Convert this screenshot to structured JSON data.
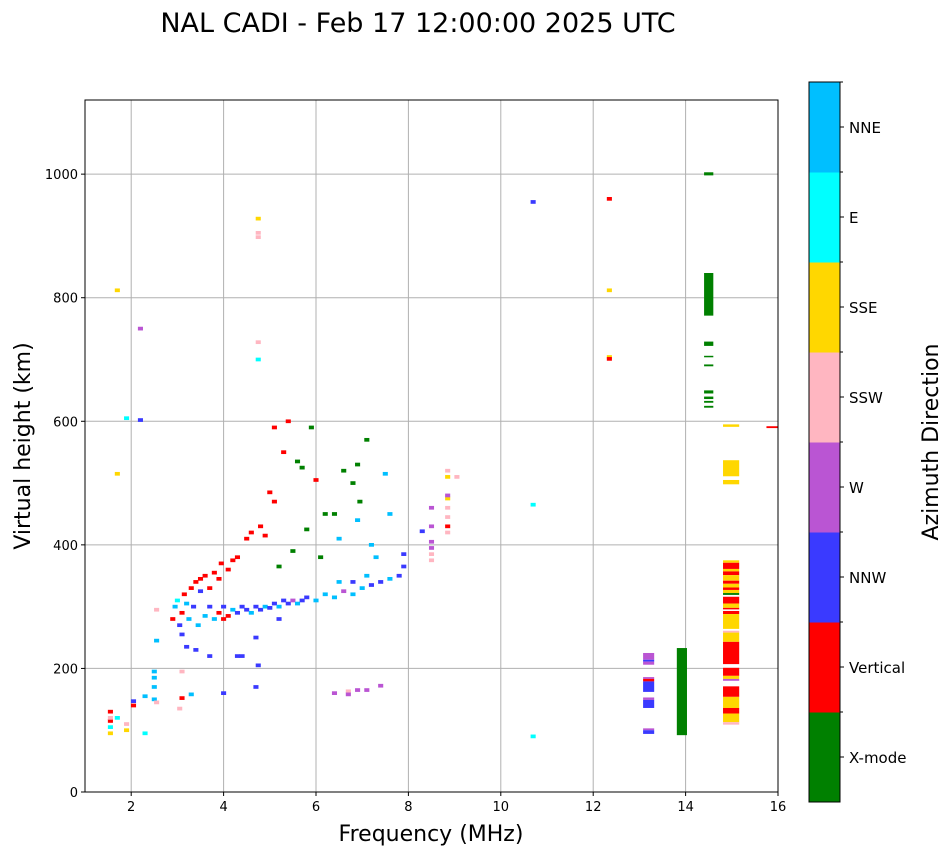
{
  "chart_data": {
    "type": "scatter",
    "title": "NAL CADI - Feb 17 12:00:00 2025 UTC",
    "xlabel": "Frequency (MHz)",
    "ylabel": "Virtual height (km)",
    "xlim": [
      1,
      16
    ],
    "ylim": [
      0,
      1120
    ],
    "xticks": [
      2,
      4,
      6,
      8,
      10,
      12,
      14,
      16
    ],
    "yticks": [
      0,
      200,
      400,
      600,
      800,
      1000
    ],
    "grid": true,
    "colorbar": {
      "label": "Azimuth Direction",
      "categories": [
        "X-mode",
        "Vertical",
        "NNW",
        "W",
        "SSW",
        "SSE",
        "E",
        "NNE"
      ],
      "colors": [
        "#008000",
        "#ff0000",
        "#3a3aff",
        "#ba55d3",
        "#ffb6c1",
        "#ffd700",
        "#00ffff",
        "#00bfff"
      ]
    },
    "points_format": "[frequency_MHz, virtual_height_km, direction_index]",
    "points": [
      [
        1.55,
        95,
        5
      ],
      [
        1.55,
        105,
        6
      ],
      [
        1.55,
        115,
        1
      ],
      [
        1.55,
        120,
        4
      ],
      [
        1.55,
        130,
        1
      ],
      [
        1.7,
        120,
        6
      ],
      [
        1.9,
        110,
        4
      ],
      [
        1.9,
        100,
        5
      ],
      [
        2.05,
        140,
        1
      ],
      [
        2.05,
        147,
        2
      ],
      [
        2.3,
        95,
        6
      ],
      [
        2.3,
        155,
        7
      ],
      [
        2.5,
        150,
        7
      ],
      [
        2.5,
        170,
        7
      ],
      [
        2.5,
        185,
        7
      ],
      [
        2.5,
        195,
        7
      ],
      [
        2.55,
        145,
        4
      ],
      [
        2.55,
        245,
        7
      ],
      [
        2.55,
        295,
        4
      ],
      [
        3.1,
        152,
        1
      ],
      [
        3.05,
        135,
        4
      ],
      [
        3.3,
        158,
        7
      ],
      [
        3.1,
        195,
        4
      ],
      [
        2.9,
        280,
        1
      ],
      [
        2.95,
        300,
        7
      ],
      [
        3.0,
        310,
        6
      ],
      [
        3.05,
        270,
        2
      ],
      [
        3.1,
        255,
        2
      ],
      [
        3.1,
        290,
        1
      ],
      [
        3.15,
        320,
        1
      ],
      [
        3.2,
        305,
        7
      ],
      [
        3.25,
        280,
        7
      ],
      [
        3.3,
        330,
        1
      ],
      [
        3.35,
        300,
        2
      ],
      [
        3.4,
        340,
        1
      ],
      [
        3.45,
        270,
        7
      ],
      [
        3.5,
        325,
        2
      ],
      [
        3.5,
        345,
        1
      ],
      [
        3.6,
        285,
        7
      ],
      [
        3.6,
        350,
        1
      ],
      [
        3.7,
        300,
        2
      ],
      [
        3.7,
        330,
        1
      ],
      [
        3.8,
        280,
        7
      ],
      [
        3.8,
        355,
        1
      ],
      [
        3.9,
        290,
        1
      ],
      [
        3.9,
        345,
        1
      ],
      [
        3.95,
        370,
        1
      ],
      [
        4.0,
        280,
        1
      ],
      [
        4.0,
        300,
        2
      ],
      [
        4.1,
        285,
        1
      ],
      [
        4.1,
        360,
        1
      ],
      [
        4.2,
        375,
        1
      ],
      [
        4.2,
        295,
        7
      ],
      [
        4.3,
        380,
        1
      ],
      [
        4.3,
        290,
        2
      ],
      [
        4.4,
        300,
        2
      ],
      [
        4.5,
        295,
        2
      ],
      [
        4.6,
        290,
        7
      ],
      [
        4.7,
        300,
        2
      ],
      [
        4.8,
        295,
        2
      ],
      [
        4.9,
        300,
        7
      ],
      [
        5.0,
        298,
        2
      ],
      [
        5.1,
        305,
        2
      ],
      [
        5.2,
        300,
        7
      ],
      [
        5.3,
        310,
        2
      ],
      [
        5.4,
        305,
        2
      ],
      [
        5.5,
        310,
        3
      ],
      [
        5.6,
        305,
        7
      ],
      [
        5.7,
        310,
        2
      ],
      [
        5.8,
        315,
        2
      ],
      [
        6.0,
        310,
        7
      ],
      [
        6.2,
        320,
        7
      ],
      [
        6.4,
        315,
        7
      ],
      [
        6.6,
        325,
        3
      ],
      [
        6.8,
        320,
        7
      ],
      [
        7.0,
        330,
        7
      ],
      [
        7.2,
        335,
        2
      ],
      [
        7.4,
        340,
        2
      ],
      [
        7.6,
        345,
        7
      ],
      [
        7.8,
        350,
        2
      ],
      [
        7.9,
        365,
        2
      ],
      [
        7.9,
        385,
        2
      ],
      [
        6.5,
        340,
        7
      ],
      [
        6.8,
        340,
        2
      ],
      [
        7.1,
        350,
        7
      ],
      [
        5.2,
        280,
        2
      ],
      [
        4.3,
        220,
        2
      ],
      [
        4.4,
        220,
        2
      ],
      [
        3.7,
        220,
        2
      ],
      [
        4.75,
        205,
        2
      ],
      [
        3.2,
        235,
        2
      ],
      [
        3.4,
        230,
        2
      ],
      [
        4.7,
        250,
        2
      ],
      [
        4.0,
        160,
        2
      ],
      [
        4.7,
        170,
        2
      ],
      [
        4.5,
        410,
        1
      ],
      [
        4.6,
        420,
        1
      ],
      [
        4.8,
        430,
        1
      ],
      [
        5.0,
        485,
        1
      ],
      [
        5.1,
        470,
        1
      ],
      [
        4.9,
        415,
        1
      ],
      [
        5.1,
        590,
        1
      ],
      [
        5.4,
        600,
        1
      ],
      [
        5.3,
        550,
        1
      ],
      [
        6.0,
        505,
        1
      ],
      [
        5.8,
        425,
        0
      ],
      [
        5.5,
        390,
        0
      ],
      [
        5.2,
        365,
        0
      ],
      [
        5.6,
        535,
        0
      ],
      [
        5.7,
        525,
        0
      ],
      [
        6.2,
        450,
        0
      ],
      [
        6.6,
        520,
        0
      ],
      [
        6.8,
        500,
        0
      ],
      [
        6.9,
        530,
        0
      ],
      [
        6.95,
        470,
        0
      ],
      [
        7.1,
        570,
        0
      ],
      [
        7.2,
        400,
        7
      ],
      [
        7.5,
        515,
        7
      ],
      [
        7.6,
        450,
        7
      ],
      [
        6.4,
        450,
        0
      ],
      [
        5.9,
        590,
        0
      ],
      [
        6.1,
        380,
        0
      ],
      [
        6.5,
        410,
        7
      ],
      [
        6.9,
        440,
        7
      ],
      [
        7.3,
        380,
        7
      ],
      [
        8.5,
        395,
        3
      ],
      [
        8.5,
        405,
        3
      ],
      [
        8.5,
        460,
        3
      ],
      [
        8.5,
        430,
        3
      ],
      [
        8.5,
        385,
        4
      ],
      [
        8.5,
        375,
        4
      ],
      [
        8.85,
        420,
        4
      ],
      [
        8.85,
        430,
        1
      ],
      [
        8.85,
        445,
        4
      ],
      [
        8.85,
        460,
        4
      ],
      [
        8.85,
        475,
        5
      ],
      [
        8.85,
        480,
        3
      ],
      [
        8.85,
        510,
        5
      ],
      [
        8.85,
        520,
        4
      ],
      [
        9.05,
        510,
        4
      ],
      [
        8.3,
        422,
        2
      ],
      [
        1.7,
        812,
        5
      ],
      [
        1.7,
        515,
        5
      ],
      [
        1.9,
        605,
        6
      ],
      [
        2.2,
        602,
        2
      ],
      [
        2.2,
        750,
        3
      ],
      [
        4.75,
        928,
        5
      ],
      [
        4.75,
        905,
        4
      ],
      [
        4.75,
        898,
        4
      ],
      [
        4.75,
        728,
        4
      ],
      [
        4.75,
        700,
        6
      ],
      [
        10.7,
        955,
        2
      ],
      [
        10.7,
        465,
        6
      ],
      [
        10.7,
        90,
        6
      ],
      [
        12.35,
        960,
        1
      ],
      [
        12.35,
        812,
        5
      ],
      [
        12.35,
        704,
        5
      ],
      [
        12.35,
        701,
        1
      ],
      [
        6.4,
        160,
        3
      ],
      [
        6.7,
        163,
        4
      ],
      [
        6.7,
        158,
        3
      ],
      [
        6.9,
        165,
        3
      ],
      [
        7.1,
        165,
        3
      ],
      [
        7.4,
        172,
        3
      ]
    ],
    "bars_format": "[freq_start_MHz, freq_end_MHz, height_low_km, height_high_km, direction_index]",
    "bars": [
      [
        14.4,
        14.6,
        998,
        1003,
        0
      ],
      [
        14.4,
        14.6,
        771,
        840,
        0
      ],
      [
        14.4,
        14.6,
        722,
        729,
        0
      ],
      [
        14.4,
        14.6,
        704,
        706,
        0
      ],
      [
        14.4,
        14.6,
        689,
        692,
        0
      ],
      [
        14.4,
        14.6,
        645,
        650,
        0
      ],
      [
        14.4,
        14.6,
        636,
        640,
        0
      ],
      [
        14.4,
        14.6,
        630,
        633,
        0
      ],
      [
        14.4,
        14.6,
        622,
        625,
        0
      ],
      [
        15.75,
        16.0,
        589,
        592,
        1
      ],
      [
        13.81,
        14.03,
        92,
        233,
        0
      ],
      [
        13.08,
        13.32,
        214,
        225,
        3
      ],
      [
        13.08,
        13.32,
        211,
        214,
        2
      ],
      [
        13.08,
        13.32,
        206,
        211,
        3
      ],
      [
        13.08,
        13.32,
        183,
        186,
        3
      ],
      [
        13.08,
        13.32,
        179,
        183,
        1
      ],
      [
        13.08,
        13.32,
        162,
        179,
        2
      ],
      [
        13.08,
        13.32,
        149,
        153,
        3
      ],
      [
        13.08,
        13.32,
        136,
        149,
        2
      ],
      [
        13.08,
        13.32,
        100,
        103,
        3
      ],
      [
        13.08,
        13.32,
        94,
        100,
        2
      ],
      [
        14.81,
        15.16,
        591,
        595,
        5
      ],
      [
        14.81,
        15.16,
        511,
        537,
        5
      ],
      [
        14.81,
        15.16,
        498,
        505,
        5
      ],
      [
        14.81,
        15.16,
        371,
        375,
        5
      ],
      [
        14.81,
        15.16,
        361,
        371,
        1
      ],
      [
        14.81,
        15.16,
        357,
        361,
        5
      ],
      [
        14.81,
        15.16,
        351,
        357,
        1
      ],
      [
        14.81,
        15.16,
        342,
        351,
        5
      ],
      [
        14.81,
        15.16,
        337,
        342,
        1
      ],
      [
        14.81,
        15.16,
        331,
        337,
        5
      ],
      [
        14.81,
        15.16,
        327,
        331,
        1
      ],
      [
        14.81,
        15.16,
        322,
        327,
        5
      ],
      [
        14.81,
        15.16,
        319,
        322,
        0
      ],
      [
        14.81,
        15.16,
        305,
        316,
        1
      ],
      [
        14.81,
        15.16,
        298,
        305,
        5
      ],
      [
        14.81,
        15.16,
        296,
        298,
        1
      ],
      [
        14.81,
        15.16,
        288,
        293,
        1
      ],
      [
        14.81,
        15.16,
        264,
        288,
        5
      ],
      [
        14.81,
        15.16,
        258,
        261,
        4
      ],
      [
        14.81,
        15.16,
        243,
        258,
        5
      ],
      [
        14.81,
        15.16,
        207,
        243,
        1
      ],
      [
        14.81,
        15.16,
        188,
        201,
        1
      ],
      [
        14.81,
        15.16,
        183,
        188,
        5
      ],
      [
        14.81,
        15.16,
        180,
        183,
        3
      ],
      [
        14.81,
        15.16,
        154,
        171,
        1
      ],
      [
        14.81,
        15.16,
        136,
        154,
        5
      ],
      [
        14.81,
        15.16,
        127,
        136,
        1
      ],
      [
        14.81,
        15.16,
        113,
        127,
        5
      ],
      [
        14.81,
        15.16,
        109,
        113,
        4
      ]
    ]
  }
}
